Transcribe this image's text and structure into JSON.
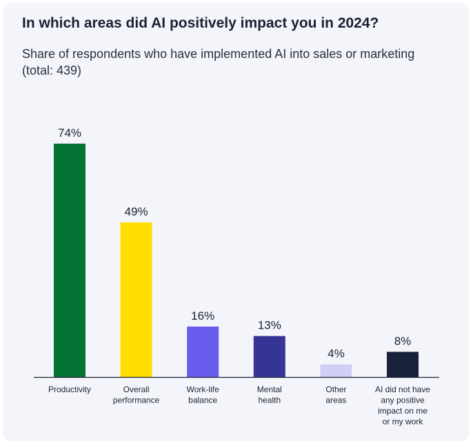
{
  "header": {
    "title": "In which areas did AI positively impact you in 2024?",
    "subtitle": "Share of respondents who have implemented AI into sales or marketing (total: 439)"
  },
  "chart_data": {
    "type": "bar",
    "title": "In which areas did AI positively impact you in 2024?",
    "subtitle": "Share of respondents who have implemented AI into sales or marketing (total: 439)",
    "categories": [
      "Productivity",
      "Overall performance",
      "Work-life balance",
      "Mental health",
      "Other areas",
      "AI did not have any positive impact on me or my work"
    ],
    "category_lines": [
      [
        "Productivity"
      ],
      [
        "Overall",
        "performance"
      ],
      [
        "Work-life",
        "balance"
      ],
      [
        "Mental",
        "health"
      ],
      [
        "Other",
        "areas"
      ],
      [
        "AI did not have",
        "any positive",
        "impact on me",
        "or my work"
      ]
    ],
    "values": [
      74,
      49,
      16,
      13,
      4,
      8
    ],
    "value_labels": [
      "74%",
      "49%",
      "16%",
      "13%",
      "4%",
      "8%"
    ],
    "colors": [
      "#037233",
      "#ffdd00",
      "#6b5cf0",
      "#363596",
      "#d0d0f7",
      "#18213a"
    ],
    "unit": "%",
    "ylim": [
      0,
      74
    ],
    "xlabel": "",
    "ylabel": "",
    "grid": false,
    "legend": "none"
  }
}
